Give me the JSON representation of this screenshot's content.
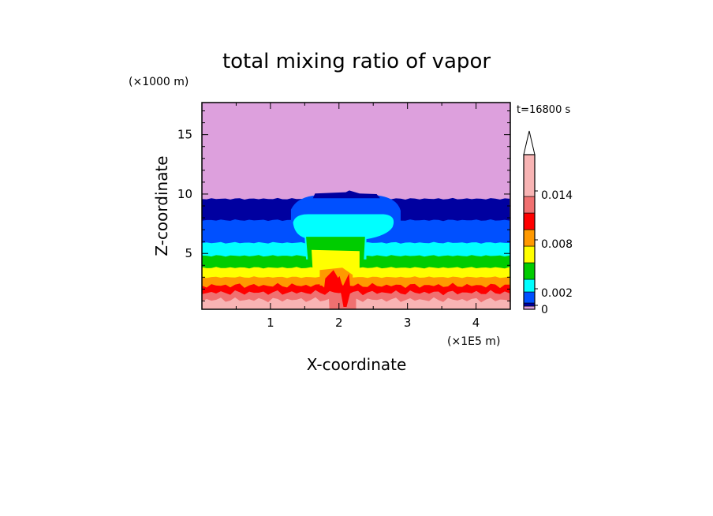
{
  "chart_data": {
    "type": "contour",
    "title": "total mixing ratio of vapor",
    "time_label": "t=16800 s",
    "xlabel": "X-coordinate",
    "ylabel": "Z-coordinate",
    "x_unit": "(×1E5 m)",
    "y_unit": "(×1000 m)",
    "xlim": [
      0,
      4.5
    ],
    "ylim": [
      0.3,
      17.7
    ],
    "x_ticks": [
      1,
      2,
      3,
      4
    ],
    "y_ticks": [
      5,
      10,
      15
    ],
    "x_tick_labels": [
      "1",
      "2",
      "3",
      "4"
    ],
    "y_tick_labels": [
      "5",
      "10",
      "15"
    ],
    "levels": [
      0,
      0.002,
      0.004,
      0.006,
      0.008,
      0.01,
      0.012,
      0.014,
      0.016
    ],
    "colorbar_labels": [
      "0",
      "0.002",
      "0.008",
      "0.014"
    ],
    "colorbar_label_values": [
      0,
      0.002,
      0.008,
      0.014
    ],
    "colorbar_extend": "max",
    "band_colors": [
      "#dda0dd",
      "#0000a0",
      "#0050ff",
      "#00ffff",
      "#00cc00",
      "#ffff00",
      "#ff9900",
      "#ff0000",
      "#f07070",
      "#f8b4b4"
    ],
    "band_boundaries_z": [
      9.6,
      7.8,
      5.9,
      4.8,
      3.8,
      3.0,
      2.3,
      1.7,
      1.1
    ]
  }
}
